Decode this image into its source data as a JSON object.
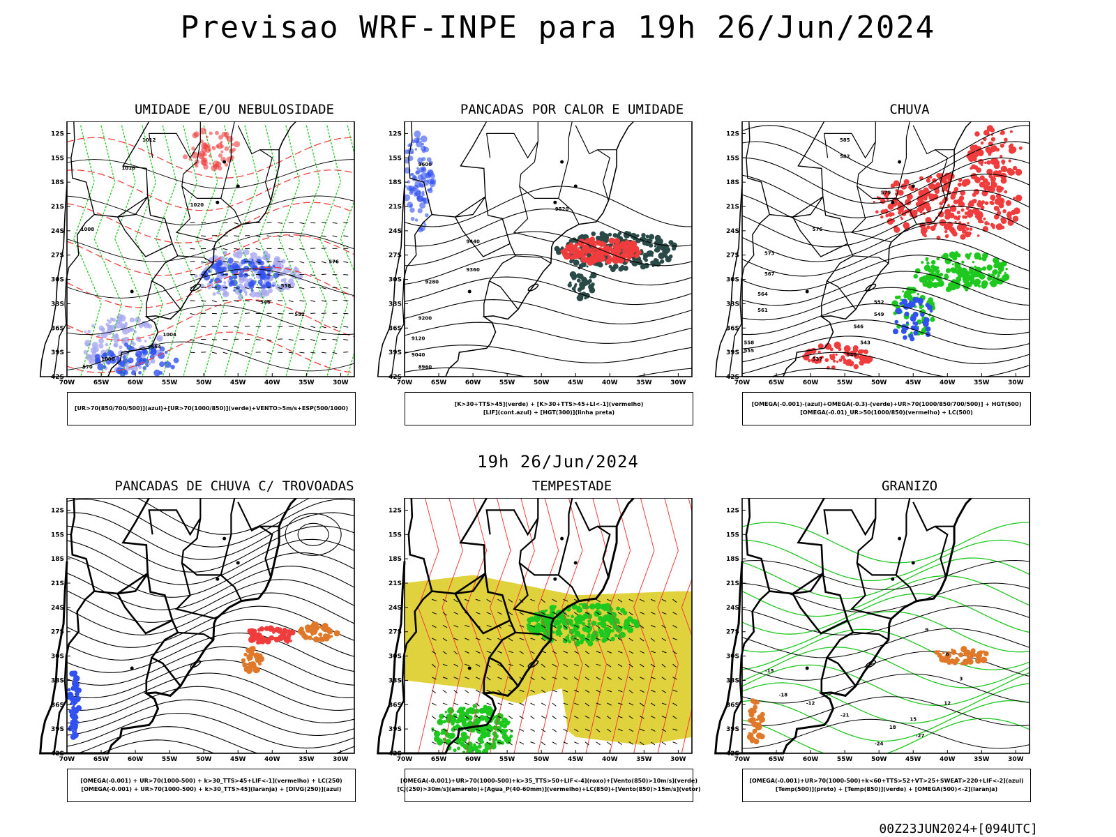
{
  "title": "Previsao WRF-INPE  para 19h 26/Jun/2024",
  "mid_date": "19h 26/Jun/2024",
  "footer": "00Z23JUN2024+[094UTC]",
  "lat_labels": [
    "12S",
    "15S",
    "18S",
    "21S",
    "24S",
    "27S",
    "30S",
    "33S",
    "36S",
    "39S",
    "42S"
  ],
  "lon_labels": [
    "70W",
    "65W",
    "60W",
    "55W",
    "50W",
    "45W",
    "40W",
    "35W",
    "30W"
  ],
  "panels": [
    {
      "title": "UMIDADE E/OU NEBULOSIDADE",
      "legend": [
        "[UR>70(850/700/500)](azul)+[UR>70(1000/850)](verde)+VENTO>5m/s+ESP(500/1000)"
      ],
      "contour_labels": [
        "1012",
        "1016",
        "1020",
        "1008",
        "1004",
        "1000",
        "564",
        "570",
        "576",
        "558",
        "552",
        "546"
      ]
    },
    {
      "title": "PANCADAS POR CALOR E UMIDADE",
      "legend": [
        "[K>30+TTS>45](verde) + [K>30+TTS>45+LI<-1](vermelho)",
        "[LIF](cont.azul) + [HGT(300)](linha preta)"
      ],
      "contour_labels": [
        "9600",
        "9520",
        "9440",
        "9360",
        "9280",
        "9200",
        "9120",
        "9040",
        "8960"
      ]
    },
    {
      "title": "CHUVA",
      "legend": [
        "[OMEGA(-0.001)-(azul)+OMEGA(-0.3)-(verde)+UR>70(1000/850/700/500)] + HGT(500)",
        "[OMEGA(-0.01)_UR>50(1000/850)(vermelho) + LC(500)"
      ],
      "contour_labels": [
        "585",
        "582",
        "579",
        "576",
        "573",
        "567",
        "564",
        "561",
        "558",
        "555",
        "552",
        "549",
        "546",
        "543",
        "540",
        "537"
      ]
    },
    {
      "title": "PANCADAS DE CHUVA C/ TROVOADAS",
      "legend": [
        "[OMEGA(-0.001) + UR>70(1000-500) + k>30_TTS>45+LIF<-1](vermelho) + LC(250)",
        "[OMEGA(-0.001) + UR>70(1000-500) + k>30_TTS>45](laranja) + [DIVG(250)](azul)"
      ],
      "contour_labels": []
    },
    {
      "title": "TEMPESTADE",
      "legend": [
        "[OMEGA(-0.001)+UR>70(1000-500)+k>35_TTS>50+LIF<-4](roxo)+[Vento(850)>10m/s](verde)",
        "[CJ(250)>30m/s](amarelo)+[Agua_P(40-60mm)](vermelho)+LC(850)+[Vento(850)>15m/s](vetor)"
      ],
      "contour_labels": []
    },
    {
      "title": "GRANIZO",
      "legend": [
        "[OMEGA(-0.001)+UR>70(1000-500)+k<60+TTS>52+VT>25+SWEAT>220+LIF<-2](azul)",
        "[Temp(500)](preto) + [Temp(850)](verde) + [OMEGA(500)<-2](laranja)"
      ],
      "contour_labels": [
        "-15",
        "-12",
        "-18",
        "-21",
        "-24",
        "-27",
        "9",
        "6",
        "3",
        "12",
        "15",
        "18"
      ]
    }
  ],
  "colors": {
    "blue": "#3050f0",
    "green": "#1ec81e",
    "red": "#f03c3c",
    "orange": "#e0782a",
    "yellow": "#e0d23c",
    "darkgreen": "#2a4a48",
    "lavender": "#a8a8f0",
    "line": "#000000"
  }
}
